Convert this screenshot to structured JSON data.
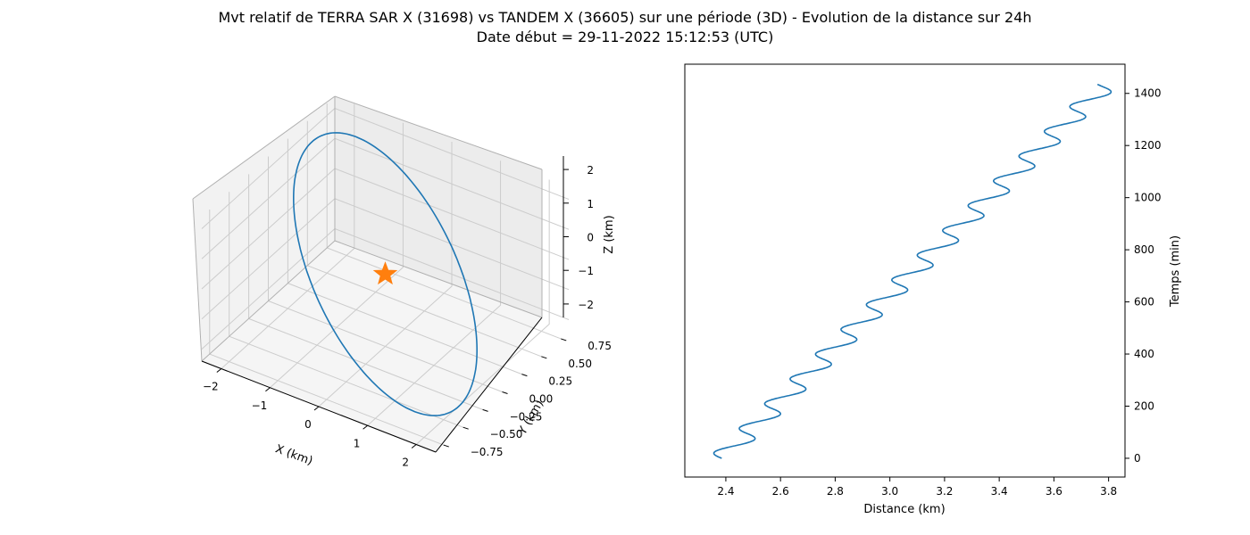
{
  "figure": {
    "title_line1": "Mvt relatif de TERRA SAR X (31698) vs TANDEM X (36605) sur une période (3D) - Evolution de la distance sur 24h",
    "title_line2": "Date début = 29-11-2022 15:12:53 (UTC)"
  },
  "colors": {
    "series": "#1f77b4",
    "marker": "#ff7f0e",
    "pane": "#f2f2f2",
    "grid": "#cccccc"
  },
  "chart_data": [
    {
      "type": "line3d",
      "title": "",
      "xlabel": "X (km)",
      "ylabel": "Y (km)",
      "zlabel": "Z (km)",
      "xlim": [
        -2.4,
        2.4
      ],
      "ylim": [
        -0.85,
        0.85
      ],
      "zlim": [
        -2.4,
        2.4
      ],
      "x_ticks": [
        "−2",
        "−1",
        "0",
        "1",
        "2"
      ],
      "x_tick_values": [
        -2,
        -1,
        0,
        1,
        2
      ],
      "y_ticks": [
        "−0.75",
        "−0.50",
        "−0.25",
        "0.00",
        "0.25",
        "0.50",
        "0.75"
      ],
      "y_tick_values": [
        -0.75,
        -0.5,
        -0.25,
        0,
        0.25,
        0.5,
        0.75
      ],
      "z_ticks": [
        "−2",
        "−1",
        "0",
        "1",
        "2"
      ],
      "z_tick_values": [
        -2,
        -1,
        0,
        1,
        2
      ],
      "series": [
        {
          "type": "ellipse",
          "center": [
            0,
            0,
            0
          ],
          "axis_a": [
            -2.1,
            0.35,
            2.2
          ],
          "axis_b": [
            0.12,
            -0.75,
            0.05
          ]
        }
      ],
      "marker": {
        "shape": "star",
        "point": [
          0,
          0,
          0
        ]
      }
    },
    {
      "type": "line",
      "title": "",
      "xlabel": "Distance (km)",
      "ylabel": "Temps (min)",
      "xlim": [
        2.25,
        3.86
      ],
      "ylim": [
        -72,
        1512
      ],
      "x_ticks": [
        2.4,
        2.6,
        2.8,
        3.0,
        3.2,
        3.4,
        3.6,
        3.8
      ],
      "x_tick_labels": [
        "2.4",
        "2.6",
        "2.8",
        "3.0",
        "3.2",
        "3.4",
        "3.6",
        "3.8"
      ],
      "y_ticks": [
        0,
        200,
        400,
        600,
        800,
        1000,
        1200,
        1400
      ],
      "y_tick_labels": [
        "0",
        "200",
        "400",
        "600",
        "800",
        "1000",
        "1200",
        "1400"
      ],
      "y_axis_side": "right",
      "grid": false,
      "series": [
        {
          "type": "sinusoidal-drift",
          "x_start": 2.385,
          "x_end": 3.79,
          "amplitude": 0.05,
          "period_min": 95,
          "t_start": 0,
          "t_end": 1435
        }
      ]
    }
  ]
}
